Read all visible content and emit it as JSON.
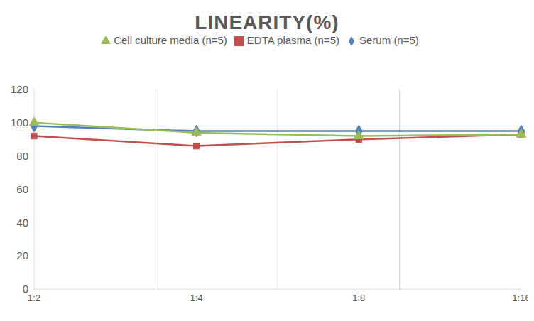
{
  "chart_data": {
    "type": "line",
    "title": "LINEARITY(%)",
    "categories": [
      "1:2",
      "1:4",
      "1:8",
      "1:16"
    ],
    "series": [
      {
        "name": "Serum (n=5)",
        "color": "#4F81BD",
        "marker": "diamond",
        "values": [
          98,
          95,
          95,
          95
        ]
      },
      {
        "name": "EDTA plasma (n=5)",
        "color": "#C0504D",
        "marker": "square",
        "values": [
          92,
          86,
          90,
          93
        ]
      },
      {
        "name": "Cell culture media (n=5)",
        "color": "#9BBB59",
        "marker": "triangle",
        "values": [
          100,
          94,
          92,
          93
        ]
      }
    ],
    "ylim": [
      0,
      120
    ],
    "yticks": [
      0,
      20,
      40,
      60,
      80,
      100,
      120
    ],
    "grid": true,
    "legend": "top"
  }
}
